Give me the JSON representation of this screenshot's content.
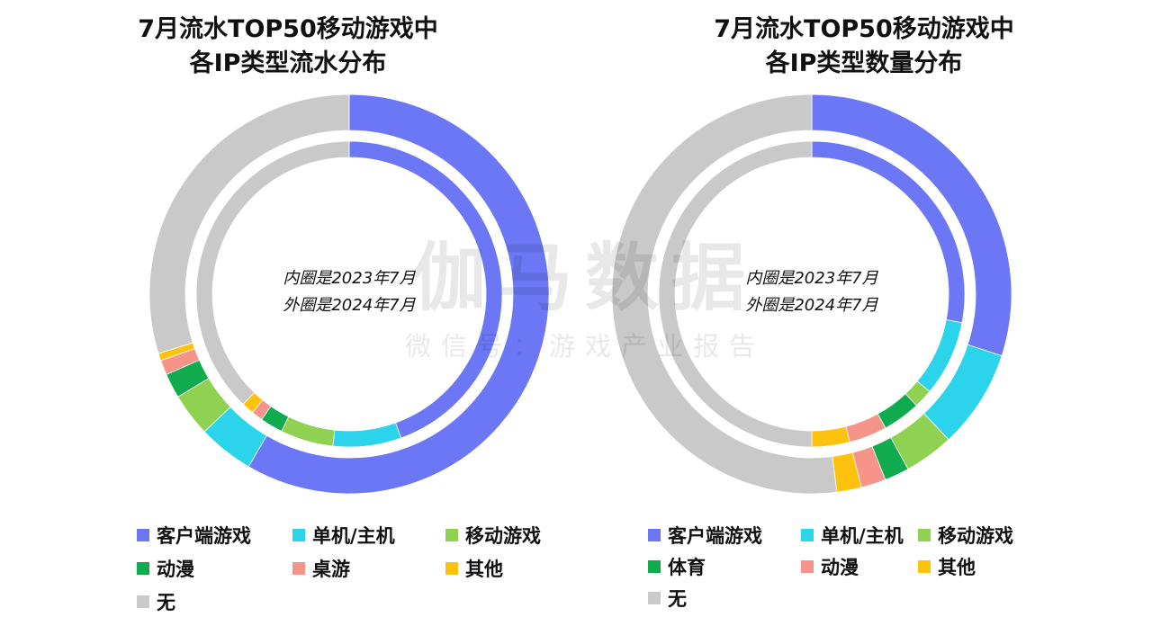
{
  "chart_data": [
    {
      "type": "donut",
      "title": [
        "7月流水TOP50移动游戏中",
        "各IP类型流水分布"
      ],
      "center_text": [
        "内圈是2023年7月",
        "外圈是2024年7月"
      ],
      "categories": [
        "客户端游戏",
        "单机/主机",
        "移动游戏",
        "动漫",
        "桌游",
        "其他",
        "无"
      ],
      "colors": [
        "#6b77f4",
        "#2bd3eb",
        "#8fd151",
        "#10ab4f",
        "#f7948a",
        "#fcc20e",
        "#c9c9c9"
      ],
      "series": [
        {
          "ring": "inner",
          "values": [
            44.5,
            7.2,
            5.6,
            2.4,
            1.2,
            1.3,
            37.8
          ]
        },
        {
          "ring": "outer",
          "values": [
            58.4,
            4.5,
            3.5,
            2.0,
            1.2,
            0.6,
            29.8
          ]
        }
      ]
    },
    {
      "type": "donut",
      "title": [
        "7月流水TOP50移动游戏中",
        "各IP类型数量分布"
      ],
      "center_text": [
        "内圈是2023年7月",
        "外圈是2024年7月"
      ],
      "categories": [
        "客户端游戏",
        "单机/主机",
        "移动游戏",
        "体育",
        "动漫",
        "其他",
        "无"
      ],
      "colors": [
        "#6b77f4",
        "#2bd3eb",
        "#8fd151",
        "#10ab4f",
        "#f7948a",
        "#fcc20e",
        "#c9c9c9"
      ],
      "series": [
        {
          "ring": "inner",
          "values": [
            28,
            8,
            2,
            4,
            4,
            4,
            50
          ]
        },
        {
          "ring": "outer",
          "values": [
            30,
            8,
            4,
            2,
            2,
            2,
            52
          ]
        }
      ]
    }
  ],
  "watermark": {
    "main": "伽马数据",
    "sub": "微信号：游戏产业报告"
  }
}
